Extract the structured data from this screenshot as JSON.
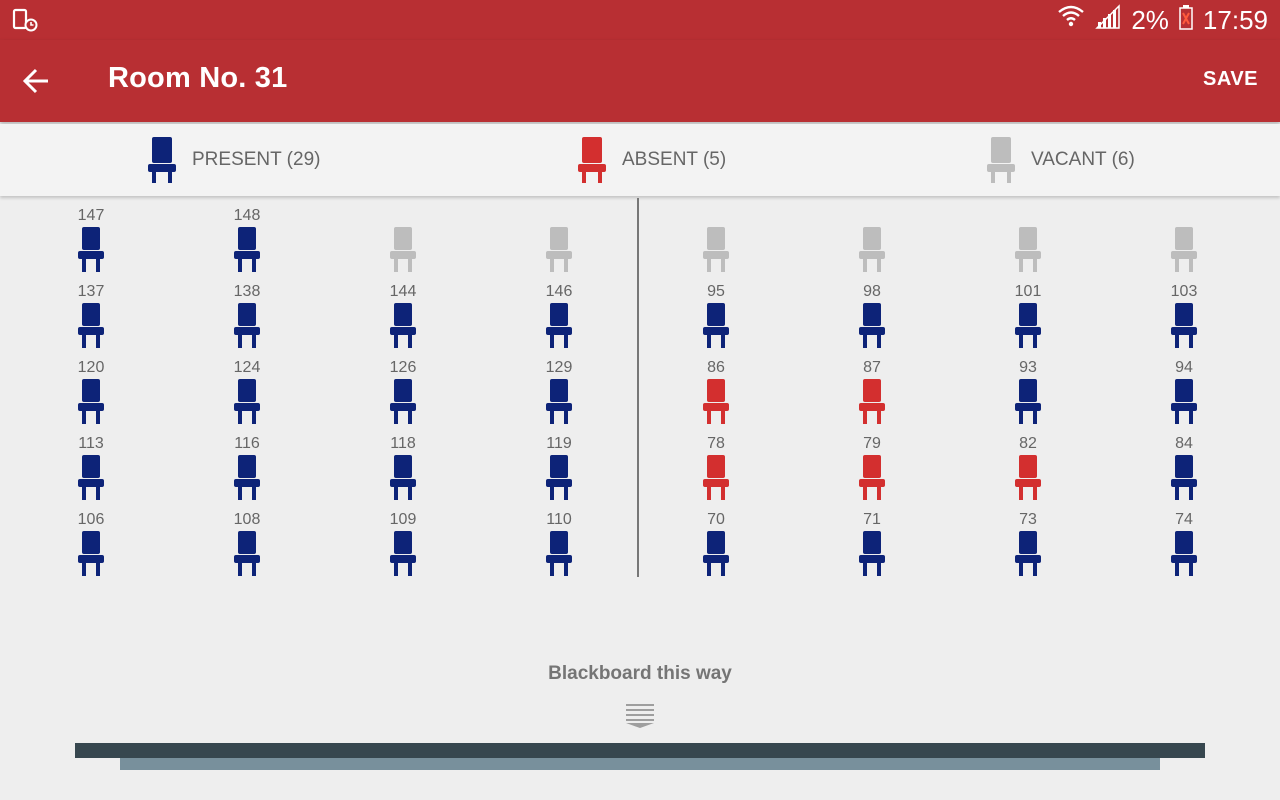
{
  "status": {
    "battery": "2%",
    "time": "17:59"
  },
  "header": {
    "title": "Room No. 31",
    "save_label": "SAVE"
  },
  "legend": {
    "present": "PRESENT (29)",
    "absent": "ABSENT (5)",
    "vacant": "VACANT (6)"
  },
  "colors": {
    "brand": "#b82f33",
    "present": "#0d2378",
    "absent": "#d32f2f",
    "vacant": "#bdbdbd"
  },
  "rows": [
    [
      {
        "n": "147",
        "s": "present"
      },
      {
        "n": "148",
        "s": "present"
      },
      {
        "n": "",
        "s": "vacant"
      },
      {
        "n": "",
        "s": "vacant"
      },
      {
        "n": "",
        "s": "vacant"
      },
      {
        "n": "",
        "s": "vacant"
      },
      {
        "n": "",
        "s": "vacant"
      },
      {
        "n": "",
        "s": "vacant"
      }
    ],
    [
      {
        "n": "137",
        "s": "present"
      },
      {
        "n": "138",
        "s": "present"
      },
      {
        "n": "144",
        "s": "present"
      },
      {
        "n": "146",
        "s": "present"
      },
      {
        "n": "95",
        "s": "present"
      },
      {
        "n": "98",
        "s": "present"
      },
      {
        "n": "101",
        "s": "present"
      },
      {
        "n": "103",
        "s": "present"
      }
    ],
    [
      {
        "n": "120",
        "s": "present"
      },
      {
        "n": "124",
        "s": "present"
      },
      {
        "n": "126",
        "s": "present"
      },
      {
        "n": "129",
        "s": "present"
      },
      {
        "n": "86",
        "s": "absent"
      },
      {
        "n": "87",
        "s": "absent"
      },
      {
        "n": "93",
        "s": "present"
      },
      {
        "n": "94",
        "s": "present"
      }
    ],
    [
      {
        "n": "113",
        "s": "present"
      },
      {
        "n": "116",
        "s": "present"
      },
      {
        "n": "118",
        "s": "present"
      },
      {
        "n": "119",
        "s": "present"
      },
      {
        "n": "78",
        "s": "absent"
      },
      {
        "n": "79",
        "s": "absent"
      },
      {
        "n": "82",
        "s": "absent"
      },
      {
        "n": "84",
        "s": "present"
      }
    ],
    [
      {
        "n": "106",
        "s": "present"
      },
      {
        "n": "108",
        "s": "present"
      },
      {
        "n": "109",
        "s": "present"
      },
      {
        "n": "110",
        "s": "present"
      },
      {
        "n": "70",
        "s": "present"
      },
      {
        "n": "71",
        "s": "present"
      },
      {
        "n": "73",
        "s": "present"
      },
      {
        "n": "74",
        "s": "present"
      }
    ]
  ],
  "footer": {
    "blackboard_label": "Blackboard this way"
  }
}
